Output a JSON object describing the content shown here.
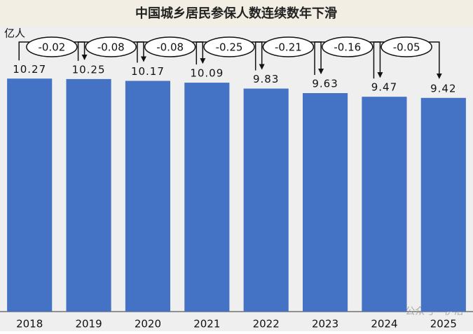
{
  "chart_data": {
    "type": "bar",
    "title": "中国城乡居民参保人数连续数年下滑",
    "unit_label": "亿人",
    "categories": [
      "2018",
      "2019",
      "2020",
      "2021",
      "2022",
      "2023",
      "2024",
      "2025"
    ],
    "values": [
      10.27,
      10.25,
      10.17,
      10.09,
      9.83,
      9.63,
      9.47,
      9.42
    ],
    "changes": [
      -0.02,
      -0.08,
      -0.08,
      -0.25,
      -0.21,
      -0.16,
      -0.05
    ],
    "color": "#4472c4",
    "ylim": [
      0,
      12.5
    ],
    "watermark": "公众号 · 伊洛"
  }
}
